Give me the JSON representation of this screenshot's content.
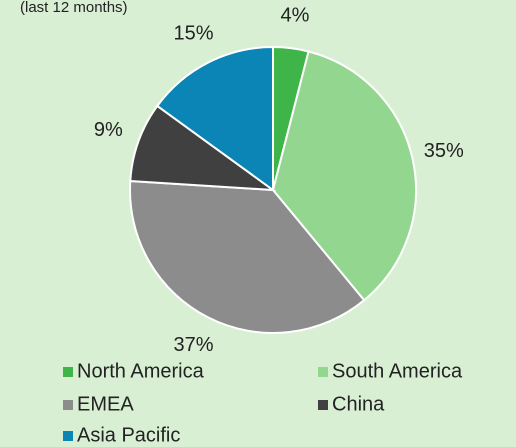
{
  "chart_data": {
    "type": "pie",
    "subtitle": "(last 12 months)",
    "categories": [
      "North America",
      "South America",
      "EMEA",
      "China",
      "Asia Pacific"
    ],
    "values": [
      4,
      35,
      37,
      9,
      15
    ],
    "value_labels": [
      "4%",
      "35%",
      "37%",
      "9%",
      "15%"
    ],
    "colors": [
      "#3fb449",
      "#93d68f",
      "#8c8c8c",
      "#404040",
      "#0b85b5"
    ],
    "legend": "bottom"
  }
}
